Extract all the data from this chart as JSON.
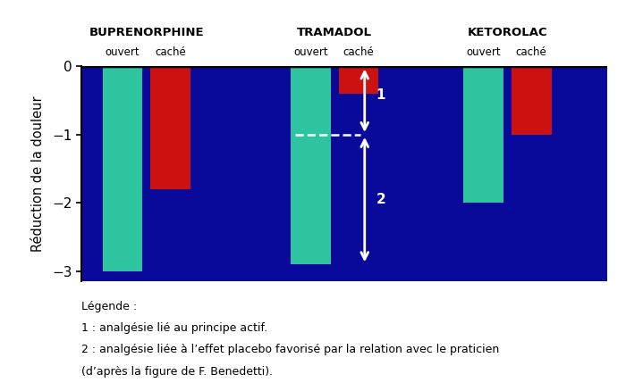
{
  "groups": [
    "BUPRENORPHINE",
    "TRAMADOL",
    "KETOROLAC"
  ],
  "sub_labels": [
    "ouvert",
    "caché"
  ],
  "bar_values_open": [
    -3.0,
    -2.9,
    -2.0
  ],
  "bar_values_hidden": [
    -1.8,
    -0.4,
    -1.0
  ],
  "open_color": "#2EC4A0",
  "hidden_color": "#CC1111",
  "bg_color": "#0A0A9A",
  "fig_bg_color": "#FFFFFF",
  "ylabel": "Réduction de la douleur",
  "ylim": [
    -3.15,
    0.0
  ],
  "yticks": [
    0,
    -1,
    -2,
    -3
  ],
  "dashed_line_y": -1.0,
  "legend_text_lines": [
    "Légende :",
    "1 : analgésie lié au principe actif.",
    "2 : analgésie liée à l’effet placebo favorisé par la relation avec le praticien",
    "(d’après la figure de F. Benedetti)."
  ],
  "bar_width": 0.52,
  "group_positions": [
    1.1,
    3.55,
    5.8
  ],
  "xlim": [
    0.25,
    7.1
  ]
}
